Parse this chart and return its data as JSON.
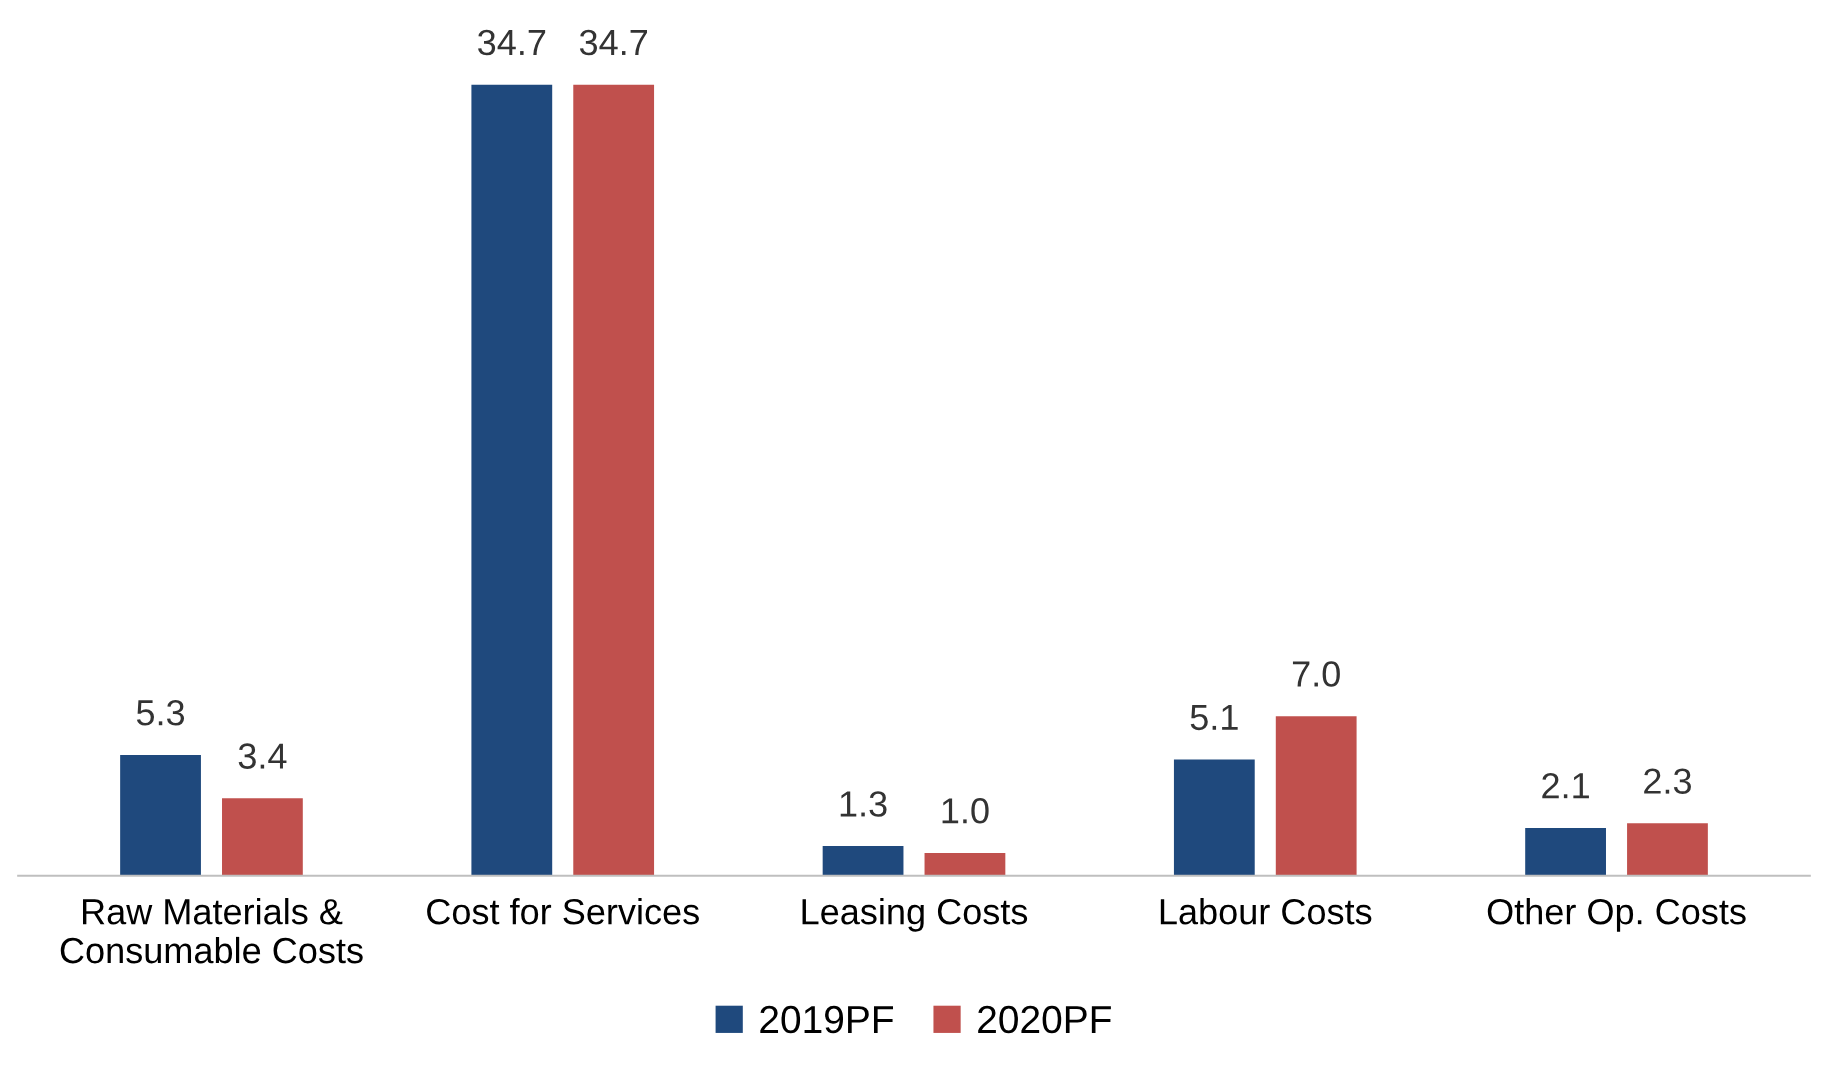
{
  "chart_data": {
    "type": "bar",
    "categories": [
      "Raw Materials &\nConsumable Costs",
      "Cost for Services",
      "Leasing Costs",
      "Labour Costs",
      "Other Op. Costs"
    ],
    "series": [
      {
        "name": "2019PF",
        "color": "#1f497d",
        "values": [
          5.3,
          34.7,
          1.3,
          5.1,
          2.1
        ],
        "value_labels": [
          "5.3",
          "34.7",
          "1.3",
          "5.1",
          "2.1"
        ]
      },
      {
        "name": "2020PF",
        "color": "#c0504d",
        "values": [
          3.4,
          34.7,
          1.0,
          7.0,
          2.3
        ],
        "value_labels": [
          "3.4",
          "34.7",
          "1.0",
          "7.0",
          "2.3"
        ]
      }
    ],
    "legend": "bottom"
  }
}
